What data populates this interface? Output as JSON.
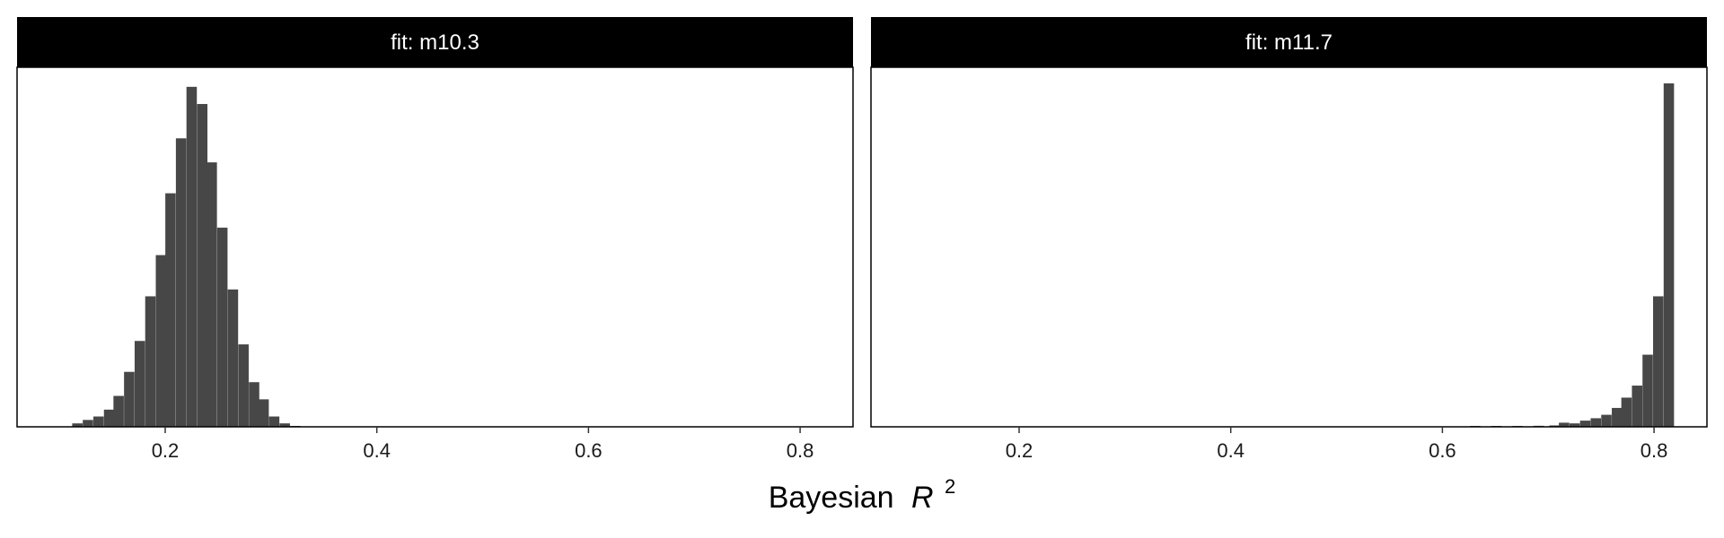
{
  "chart_data": {
    "type": "bar",
    "x_label": "Bayesian",
    "x_label_symbol": "R",
    "x_label_superscript": "2",
    "bar_color": "#474747",
    "strip_color": "#000000",
    "x_ticks": [
      "0.2",
      "0.4",
      "0.6",
      "0.8"
    ],
    "xlim": [
      0.06,
      0.85
    ],
    "bin_width": 0.0098,
    "panels": [
      {
        "strip_label": "fit: m10.3",
        "bins": [
          {
            "x": 0.117,
            "count": 0.01
          },
          {
            "x": 0.127,
            "count": 0.02
          },
          {
            "x": 0.137,
            "count": 0.03
          },
          {
            "x": 0.147,
            "count": 0.05
          },
          {
            "x": 0.156,
            "count": 0.09
          },
          {
            "x": 0.166,
            "count": 0.16
          },
          {
            "x": 0.176,
            "count": 0.25
          },
          {
            "x": 0.186,
            "count": 0.38
          },
          {
            "x": 0.196,
            "count": 0.5
          },
          {
            "x": 0.205,
            "count": 0.68
          },
          {
            "x": 0.215,
            "count": 0.84
          },
          {
            "x": 0.225,
            "count": 0.99
          },
          {
            "x": 0.235,
            "count": 0.94
          },
          {
            "x": 0.244,
            "count": 0.77
          },
          {
            "x": 0.254,
            "count": 0.58
          },
          {
            "x": 0.264,
            "count": 0.4
          },
          {
            "x": 0.274,
            "count": 0.24
          },
          {
            "x": 0.284,
            "count": 0.13
          },
          {
            "x": 0.293,
            "count": 0.08
          },
          {
            "x": 0.303,
            "count": 0.03
          },
          {
            "x": 0.313,
            "count": 0.01
          },
          {
            "x": 0.323,
            "count": 0.002
          }
        ]
      },
      {
        "strip_label": "fit: m11.7",
        "bins": [
          {
            "x": 0.631,
            "count": 0.002
          },
          {
            "x": 0.651,
            "count": 0.002
          },
          {
            "x": 0.671,
            "count": 0.002
          },
          {
            "x": 0.691,
            "count": 0.003
          },
          {
            "x": 0.706,
            "count": 0.004
          },
          {
            "x": 0.715,
            "count": 0.012
          },
          {
            "x": 0.725,
            "count": 0.01
          },
          {
            "x": 0.735,
            "count": 0.018
          },
          {
            "x": 0.745,
            "count": 0.025
          },
          {
            "x": 0.755,
            "count": 0.035
          },
          {
            "x": 0.765,
            "count": 0.055
          },
          {
            "x": 0.774,
            "count": 0.085
          },
          {
            "x": 0.784,
            "count": 0.12
          },
          {
            "x": 0.794,
            "count": 0.21
          },
          {
            "x": 0.804,
            "count": 0.38
          },
          {
            "x": 0.814,
            "count": 1.0
          }
        ]
      }
    ]
  }
}
